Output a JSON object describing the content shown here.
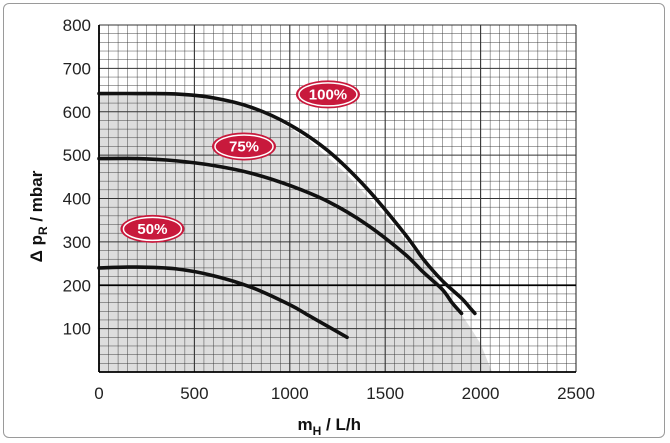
{
  "chart_data": {
    "type": "line",
    "xlabel": {
      "main": "m",
      "sub": "H",
      "rest": " / L/h"
    },
    "ylabel": {
      "main": "Δ p",
      "sub": "R",
      "rest": "  /  mbar"
    },
    "xlim": [
      0,
      2500
    ],
    "ylim": [
      0,
      800
    ],
    "xticks": [
      "0",
      "500",
      "1000",
      "1500",
      "2000",
      "2500"
    ],
    "yticks": [
      "100",
      "200",
      "300",
      "400",
      "500",
      "600",
      "700",
      "800"
    ],
    "grid": true,
    "colors": {
      "curve": "#111111",
      "badge": "#c8193c",
      "shade": "#d2d2d2",
      "grid": "#333333"
    },
    "shaded_region": [
      [
        0,
        640
      ],
      [
        400,
        640
      ],
      [
        700,
        625
      ],
      [
        900,
        590
      ],
      [
        1100,
        535
      ],
      [
        1300,
        455
      ],
      [
        1500,
        360
      ],
      [
        1700,
        255
      ],
      [
        1850,
        165
      ],
      [
        1950,
        100
      ],
      [
        2000,
        65
      ],
      [
        2060,
        0
      ],
      [
        0,
        0
      ]
    ],
    "series": [
      {
        "name": "100%",
        "badge_at": [
          1200,
          640
        ],
        "x": [
          0,
          200,
          400,
          600,
          800,
          1000,
          1200,
          1400,
          1600,
          1700,
          1800,
          1900,
          1950,
          1970
        ],
        "y": [
          642,
          642,
          641,
          632,
          610,
          570,
          510,
          425,
          320,
          260,
          210,
          170,
          145,
          135
        ]
      },
      {
        "name": "75%",
        "badge_at": [
          760,
          520
        ],
        "x": [
          0,
          200,
          400,
          600,
          800,
          1000,
          1200,
          1400,
          1600,
          1700,
          1800,
          1850,
          1900
        ],
        "y": [
          492,
          492,
          487,
          476,
          458,
          430,
          393,
          341,
          273,
          230,
          190,
          160,
          135
        ]
      },
      {
        "name": "50%",
        "badge_at": [
          280,
          330
        ],
        "x": [
          0,
          200,
          400,
          600,
          800,
          1000,
          1100,
          1200,
          1300
        ],
        "y": [
          240,
          242,
          238,
          222,
          195,
          155,
          130,
          105,
          80
        ]
      }
    ]
  }
}
